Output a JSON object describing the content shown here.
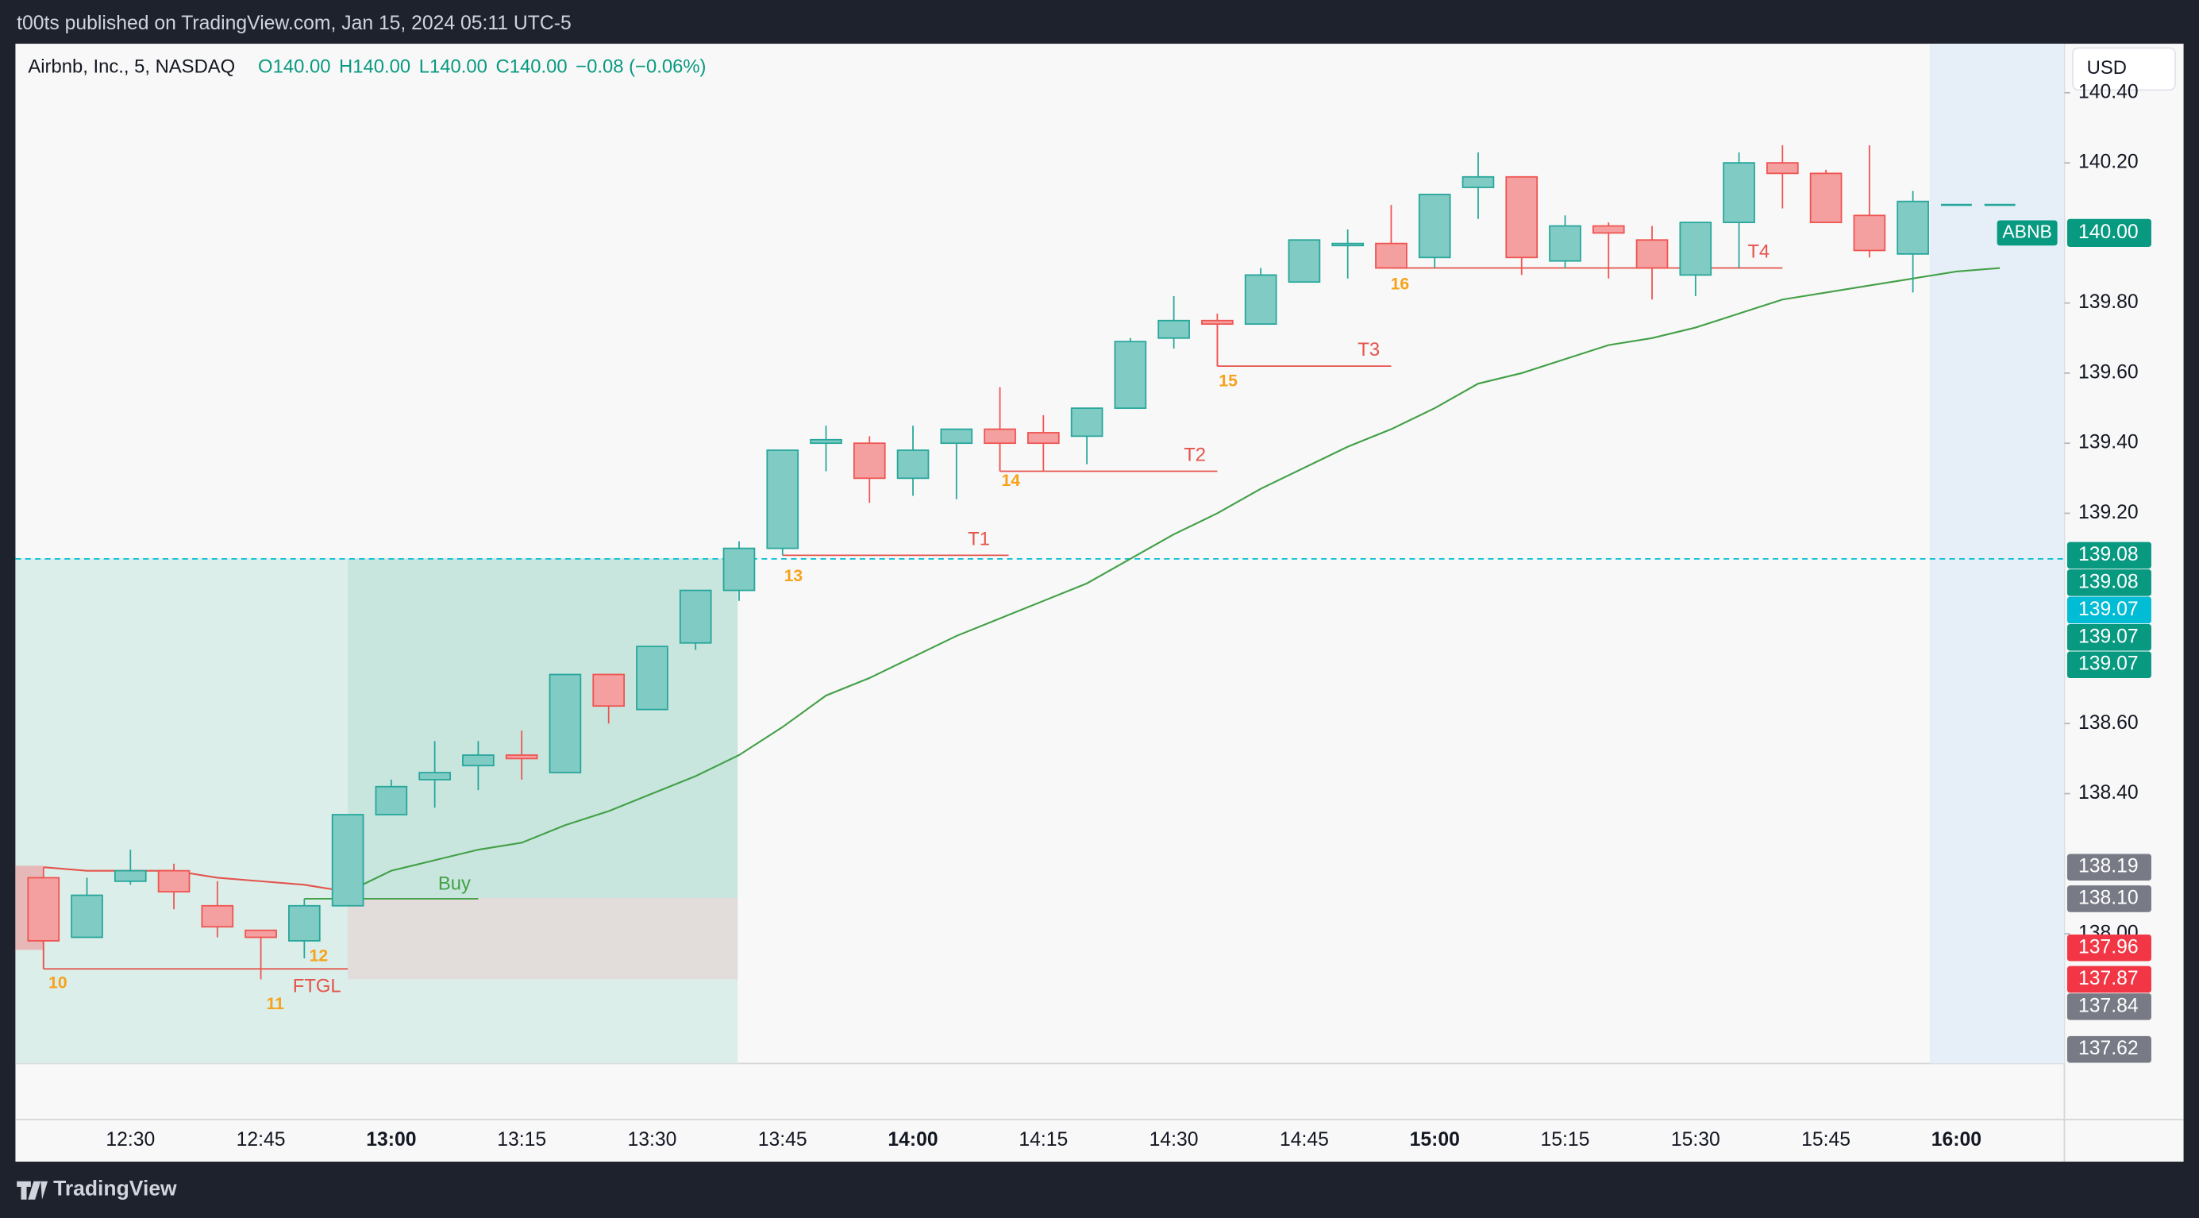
{
  "header": "t00ts published on TradingView.com, Jan 15, 2024 05:11 UTC-5",
  "footer": "TradingView",
  "currency": "USD",
  "chart_data": {
    "type": "candlestick",
    "legend": {
      "symbol": "Airbnb, Inc., 5, NASDAQ",
      "values": [
        "O140.00",
        "H140.00",
        "L140.00",
        "C140.00",
        "−0.08 (−0.06%)"
      ]
    },
    "categories": [
      null,
      null,
      "12:30",
      null,
      null,
      "12:45",
      null,
      null,
      "13:00",
      null,
      null,
      "13:15",
      null,
      null,
      "13:30",
      null,
      null,
      "13:45",
      null,
      null,
      "14:00",
      null,
      null,
      "14:15",
      null,
      null,
      "14:30",
      null,
      null,
      "14:45",
      null,
      null,
      "15:00",
      null,
      null,
      "15:15",
      null,
      null,
      "15:30",
      null,
      null,
      "15:45",
      null,
      null,
      "16:00",
      null
    ],
    "open": [
      138.16,
      137.99,
      138.15,
      138.18,
      138.08,
      138.01,
      137.98,
      138.08,
      138.34,
      138.44,
      138.48,
      138.51,
      138.46,
      138.74,
      138.64,
      138.83,
      138.98,
      139.1,
      139.4,
      139.4,
      139.3,
      139.4,
      139.44,
      139.43,
      139.42,
      139.5,
      139.7,
      139.75,
      139.74,
      139.86,
      139.97,
      139.97,
      139.93,
      140.13,
      140.16,
      139.92,
      140.02,
      139.98,
      139.88,
      140.03,
      140.2,
      140.17,
      140.05,
      139.94,
      140.08,
      140.08
    ],
    "high": [
      138.19,
      138.16,
      138.24,
      138.2,
      138.15,
      138.01,
      138.1,
      138.34,
      138.44,
      138.55,
      138.55,
      138.58,
      138.74,
      138.74,
      138.82,
      138.98,
      139.12,
      139.38,
      139.45,
      139.42,
      139.45,
      139.44,
      139.56,
      139.48,
      139.5,
      139.7,
      139.82,
      139.77,
      139.9,
      139.98,
      140.01,
      140.08,
      140.11,
      140.23,
      140.16,
      140.05,
      140.03,
      140.02,
      140.03,
      140.23,
      140.25,
      140.18,
      140.25,
      140.12,
      140.08,
      140.08
    ],
    "low": [
      137.9,
      137.99,
      138.14,
      138.07,
      137.99,
      137.87,
      137.93,
      138.08,
      138.34,
      138.36,
      138.41,
      138.44,
      138.46,
      138.6,
      138.64,
      138.81,
      138.95,
      139.08,
      139.32,
      139.23,
      139.25,
      139.24,
      139.32,
      139.32,
      139.34,
      139.5,
      139.67,
      139.62,
      139.74,
      139.86,
      139.87,
      139.9,
      139.9,
      140.04,
      139.88,
      139.9,
      139.87,
      139.81,
      139.82,
      139.9,
      140.07,
      140.03,
      139.93,
      139.83,
      140.08,
      140.08
    ],
    "close": [
      137.98,
      138.11,
      138.18,
      138.12,
      138.02,
      137.99,
      138.08,
      138.34,
      138.42,
      138.46,
      138.51,
      138.5,
      138.74,
      138.65,
      138.82,
      138.98,
      139.1,
      139.38,
      139.41,
      139.3,
      139.38,
      139.44,
      139.4,
      139.4,
      139.5,
      139.69,
      139.75,
      139.74,
      139.88,
      139.98,
      139.97,
      139.9,
      140.11,
      140.16,
      139.93,
      140.02,
      140.0,
      139.9,
      140.03,
      140.2,
      140.17,
      140.03,
      139.95,
      140.09,
      140.08,
      140.08
    ],
    "up_color": "#80cbc4",
    "up_border": "#26a69a",
    "down_color": "#f4a0a0",
    "down_border": "#ef5350",
    "overlays": [
      {
        "color": "#e5534b",
        "values": [
          138.19,
          138.18,
          138.18,
          138.18,
          138.16,
          138.15,
          138.14,
          138.12,
          null,
          null,
          null,
          null,
          null,
          null,
          null,
          null,
          null,
          null,
          null,
          null,
          null,
          null,
          null,
          null,
          null,
          null,
          null,
          null,
          null,
          null,
          null,
          null,
          null,
          null,
          null,
          null,
          null,
          null,
          null,
          null,
          null,
          null,
          null,
          null,
          null,
          null
        ]
      },
      {
        "color": "#43a047",
        "values": [
          null,
          null,
          null,
          null,
          null,
          null,
          null,
          138.12,
          138.18,
          138.21,
          138.24,
          138.26,
          138.31,
          138.35,
          138.4,
          138.45,
          138.51,
          138.59,
          138.68,
          138.73,
          138.79,
          138.85,
          138.9,
          138.95,
          139.0,
          139.07,
          139.14,
          139.2,
          139.27,
          139.33,
          139.39,
          139.44,
          139.5,
          139.57,
          139.6,
          139.64,
          139.68,
          139.7,
          139.73,
          139.77,
          139.81,
          139.83,
          139.85,
          139.87,
          139.89,
          139.9
        ]
      }
    ],
    "ylim": [
      137.63,
      140.54
    ],
    "yticks": [
      {
        "value": 140.4,
        "label": "140.40"
      },
      {
        "value": 140.2,
        "label": "140.20"
      },
      {
        "value": 139.8,
        "label": "139.80"
      },
      {
        "value": 139.6,
        "label": "139.60"
      },
      {
        "value": 139.4,
        "label": "139.40"
      },
      {
        "value": 139.2,
        "label": "139.20"
      },
      {
        "value": 138.6,
        "label": "138.60"
      },
      {
        "value": 138.4,
        "label": "138.40"
      },
      {
        "value": 138,
        "label": "138.00"
      }
    ],
    "last_price": {
      "symbol": "ABNB",
      "value": 140,
      "label": "140.00",
      "color": "#089981"
    },
    "price_labels": [
      {
        "value": 139.08,
        "color": "#089981"
      },
      {
        "value": 139.08,
        "color": "#089981"
      },
      {
        "value": 139.07,
        "color": "#00bcd4"
      },
      {
        "value": 139.07,
        "color": "#089981"
      },
      {
        "value": 139.07,
        "color": "#089981"
      },
      {
        "value": 138.19,
        "color": "#787b86"
      },
      {
        "value": 138.1,
        "label": "138.10",
        "color": "#787b86"
      },
      {
        "value": 137.96,
        "color": "#f23645"
      },
      {
        "value": 137.87,
        "color": "#f23645"
      },
      {
        "value": 137.84,
        "color": "#787b86"
      },
      {
        "value": 137.62,
        "color": "#787b86"
      }
    ],
    "levels": [
      {
        "label": "T1",
        "level": 139.08,
        "color": "#e5534b"
      },
      {
        "label": "T2",
        "level": 139.32,
        "color": "#e5534b"
      },
      {
        "label": "T3",
        "level": 139.62,
        "color": "#e5534b"
      },
      {
        "label": "T4",
        "level": 139.9,
        "color": "#e5534b"
      },
      {
        "label": "FTGL",
        "level": 137.9,
        "color": "#e5534b"
      },
      {
        "label": "Buy",
        "level": 138.1,
        "color": "#43a047"
      }
    ],
    "bar_counts": [
      "10",
      "11",
      "12",
      "13",
      "14",
      "15",
      "16"
    ],
    "bar_count_color": "#f7a21b"
  }
}
